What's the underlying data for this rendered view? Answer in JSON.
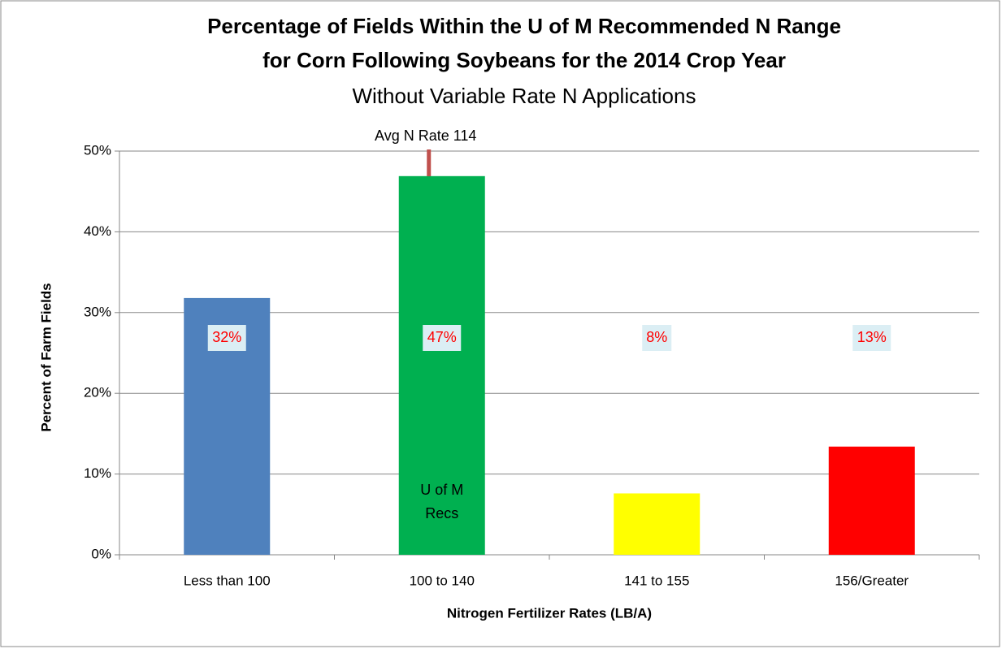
{
  "chart_data": {
    "type": "bar",
    "title": [
      "Percentage of Fields Within the U of M Recommended N Range",
      "for Corn Following Soybeans for the 2014 Crop Year"
    ],
    "subtitle": "Without Variable Rate N Applications",
    "x_label": "Nitrogen Fertilizer Rates (LB/A)",
    "y_label": "Percent of Farm Fields",
    "categories": [
      "Less than 100",
      "100 to 140",
      "141 to 155",
      "156/Greater"
    ],
    "values": [
      31.8,
      46.9,
      7.6,
      13.4
    ],
    "value_labels": [
      "32%",
      "47%",
      "8%",
      "13%"
    ],
    "colors": [
      "#4f81bd",
      "#00b050",
      "#ffff00",
      "#ff0000"
    ],
    "ylim": [
      0,
      50
    ],
    "yticks": [
      {
        "value": 0,
        "label": "0%"
      },
      {
        "value": 10,
        "label": "10%"
      },
      {
        "value": 20,
        "label": "20%"
      },
      {
        "value": 30,
        "label": "30%"
      },
      {
        "value": 40,
        "label": "40%"
      },
      {
        "value": 50,
        "label": "50%"
      }
    ],
    "grid": true,
    "annotations": [
      "Avg N Rate 114",
      "U of M",
      "Recs"
    ]
  }
}
